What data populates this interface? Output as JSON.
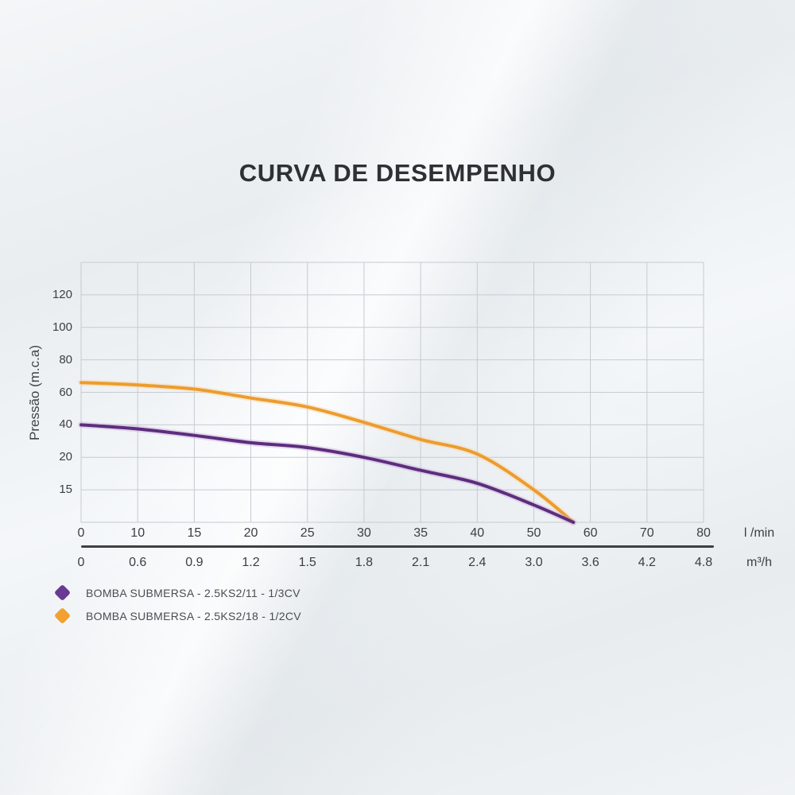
{
  "title": "CURVA DE DESEMPENHO",
  "colors": {
    "grid": "#c6cbd1",
    "axis_divider": "#3e4144",
    "text": "#3b3e42",
    "purple_series": "#5e2d7d",
    "purple_halo": "#c9b2db",
    "orange_series": "#ec9c2e",
    "orange_halo": "#f8d8a8"
  },
  "chart_data": {
    "type": "line",
    "title": "CURVA DE DESEMPENHO",
    "ylabel": "Pressão (m.c.a)",
    "grid": true,
    "legend_position": "bottom-left",
    "y_axis": {
      "ticks": [
        "120",
        "100",
        "80",
        "60",
        "40",
        "20",
        "15"
      ],
      "note": "ticks equally spaced on non-linear ladder; one unlabeled row above 120 and below 15"
    },
    "x_axis": {
      "primary": {
        "unit": "l /min",
        "ticks": [
          "0",
          "10",
          "15",
          "20",
          "25",
          "30",
          "35",
          "40",
          "50",
          "60",
          "70",
          "80"
        ]
      },
      "secondary": {
        "unit": "m³/h",
        "ticks": [
          "0",
          "0.6",
          "0.9",
          "1.2",
          "1.5",
          "1.8",
          "2.1",
          "2.4",
          "3.0",
          "3.6",
          "4.2",
          "4.8"
        ]
      },
      "note": "12 equally spaced gridline columns aligned with ticks"
    },
    "series": [
      {
        "name": "BOMBA SUBMERSA - 2.5KS2/18 - 1/2CV",
        "color": "#ec9c2e",
        "halo": "#f8d8a8",
        "points": [
          [
            0,
            66
          ],
          [
            10,
            64.5
          ],
          [
            15,
            62
          ],
          [
            20,
            56.5
          ],
          [
            25,
            51
          ],
          [
            30,
            41.5
          ],
          [
            35,
            31
          ],
          [
            40,
            22
          ],
          [
            50,
            15
          ],
          [
            57,
            0
          ]
        ]
      },
      {
        "name": "BOMBA SUBMERSA - 2.5KS2/11 - 1/3CV",
        "color": "#5e2d7d",
        "halo": "#c9b2db",
        "points": [
          [
            0,
            40
          ],
          [
            10,
            37.5
          ],
          [
            15,
            33.5
          ],
          [
            20,
            29
          ],
          [
            25,
            26
          ],
          [
            30,
            20
          ],
          [
            35,
            18
          ],
          [
            40,
            16
          ],
          [
            50,
            8
          ],
          [
            57,
            0
          ]
        ]
      }
    ]
  },
  "legend": {
    "items": [
      {
        "label": "BOMBA SUBMERSA - 2.5KS2/11 - 1/3CV",
        "color": "#6a3a92",
        "marker": "diamond"
      },
      {
        "label": "BOMBA SUBMERSA - 2.5KS2/18 - 1/2CV",
        "color": "#f2a032",
        "marker": "diamond"
      }
    ]
  }
}
